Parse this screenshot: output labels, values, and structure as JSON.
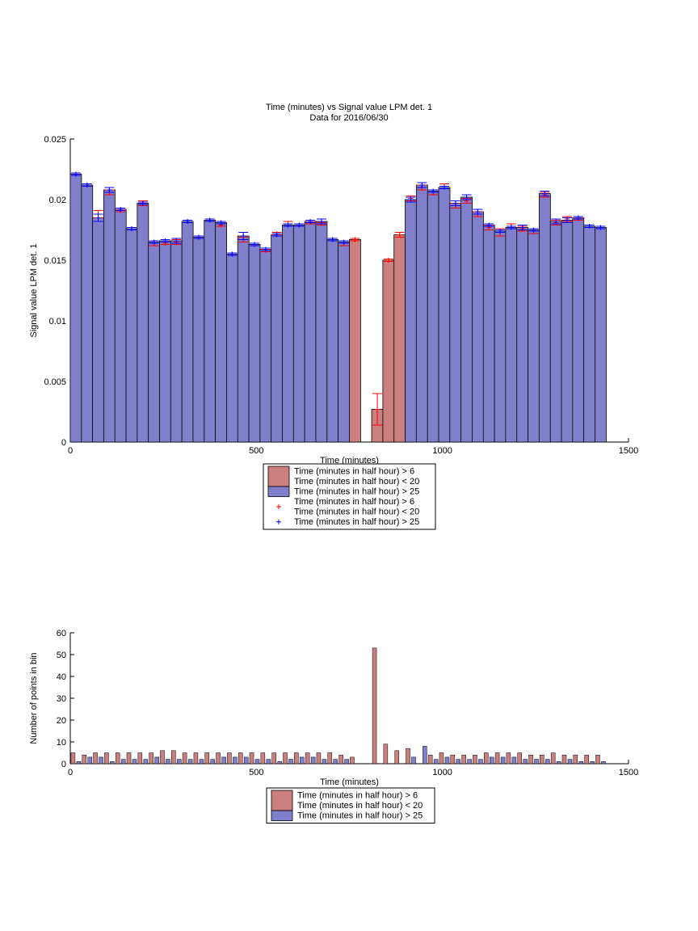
{
  "chart_data": [
    {
      "type": "bar",
      "title": "Time (minutes) vs Signal value LPM det. 1",
      "subtitle": "Data for 2016/06/30",
      "xlabel": "Time (minutes)",
      "ylabel": "Signal value LPM det. 1",
      "xlim": [
        0,
        1500
      ],
      "ylim": [
        0,
        0.025
      ],
      "xticks": [
        0,
        500,
        1000,
        1500
      ],
      "yticks": [
        0,
        0.005,
        0.01,
        0.015,
        0.02,
        0.025
      ],
      "xtick_labels": [
        "0",
        "500",
        "1000",
        "1500"
      ],
      "ytick_labels": [
        "0",
        "0.005",
        "0.01",
        "0.015",
        "0.02",
        "0.025"
      ],
      "grid": false,
      "legend": {
        "placement": "below-axes",
        "entries": [
          {
            "kind": "patch",
            "color": "#cc7f7f",
            "lines": [
              "Time (minutes in half hour) > 6",
              "Time (minutes in half hour) < 20"
            ]
          },
          {
            "kind": "patch",
            "color": "#7f7fcc",
            "lines": [
              "Time (minutes in half hour) > 25"
            ]
          },
          {
            "kind": "marker",
            "color": "#ff0000",
            "lines": [
              "Time (minutes in half hour) > 6",
              "Time (minutes in half hour) < 20"
            ]
          },
          {
            "kind": "marker",
            "color": "#0000ff",
            "lines": [
              "Time (minutes in half hour) > 25"
            ]
          }
        ]
      },
      "series": [
        {
          "color": "#7f7fcc",
          "marker_color": "#0000ff",
          "x": [
            15,
            45,
            75,
            105,
            135,
            165,
            195,
            225,
            255,
            285,
            315,
            345,
            375,
            405,
            435,
            465,
            495,
            525,
            555,
            585,
            615,
            645,
            675,
            705,
            735,
            915,
            945,
            975,
            1005,
            1035,
            1065,
            1095,
            1125,
            1155,
            1185,
            1215,
            1245,
            1275,
            1305,
            1335,
            1365,
            1395,
            1425
          ],
          "values": [
            0.0221,
            0.0212,
            0.0185,
            0.0208,
            0.0192,
            0.0176,
            0.0197,
            0.0165,
            0.0166,
            0.0166,
            0.0182,
            0.0169,
            0.0183,
            0.0181,
            0.0155,
            0.017,
            0.0163,
            0.0159,
            0.0171,
            0.0179,
            0.0179,
            0.0182,
            0.0182,
            0.0167,
            0.0165,
            0.02,
            0.0212,
            0.0207,
            0.021,
            0.0197,
            0.0202,
            0.019,
            0.0179,
            0.0174,
            0.0177,
            0.0177,
            0.0175,
            0.0205,
            0.0182,
            0.0183,
            0.0185,
            0.0178,
            0.0177
          ],
          "errors": [
            0.0001,
            0.0001,
            0.0003,
            0.0002,
            0.0001,
            0.0001,
            0.0001,
            0.0001,
            0.0001,
            0.0002,
            0.0001,
            0.0001,
            0.0001,
            0.0001,
            0.0001,
            0.0003,
            0.0001,
            0.0001,
            0.0001,
            0.0001,
            0.0001,
            0.0001,
            0.0002,
            0.0001,
            0.0001,
            0.0002,
            0.0002,
            0.0001,
            0.0001,
            0.0002,
            0.0002,
            0.0002,
            0.0001,
            0.0001,
            0.0001,
            0.0002,
            0.0001,
            0.0002,
            0.0002,
            0.0002,
            0.0001,
            0.0001,
            0.0001
          ]
        },
        {
          "color": "#cc7f7f",
          "marker_color": "#ff0000",
          "x": [
            15,
            45,
            75,
            105,
            135,
            165,
            195,
            225,
            255,
            285,
            315,
            345,
            375,
            405,
            435,
            465,
            495,
            525,
            555,
            585,
            615,
            645,
            675,
            705,
            735,
            765,
            825,
            855,
            885,
            915,
            945,
            975,
            1005,
            1035,
            1065,
            1095,
            1125,
            1155,
            1185,
            1215,
            1245,
            1275,
            1305,
            1335,
            1365,
            1395,
            1425
          ],
          "values": [
            0.0221,
            0.0212,
            0.0188,
            0.0206,
            0.0191,
            0.0176,
            0.0197,
            0.0164,
            0.0164,
            0.0165,
            0.0182,
            0.0169,
            0.0183,
            0.0179,
            0.0155,
            0.0167,
            0.0163,
            0.0158,
            0.0172,
            0.018,
            0.0179,
            0.0181,
            0.018,
            0.0167,
            0.0164,
            0.0167,
            0.0027,
            0.015,
            0.0171,
            0.0201,
            0.021,
            0.0206,
            0.0211,
            0.0195,
            0.0199,
            0.0188,
            0.0177,
            0.0173,
            0.0178,
            0.0176,
            0.0174,
            0.0204,
            0.0181,
            0.0184,
            0.0184,
            0.0178,
            0.0177
          ],
          "errors": [
            0.0001,
            0.0001,
            0.0003,
            0.0002,
            0.0001,
            0.0001,
            0.0002,
            0.0002,
            0.0001,
            0.0002,
            0.0001,
            0.0001,
            0.0001,
            0.0001,
            0.0001,
            0.0002,
            0.0001,
            0.0001,
            0.0001,
            0.0002,
            0.0001,
            0.0001,
            0.0001,
            0.0001,
            0.0002,
            0.0001,
            0.0013,
            0.0001,
            0.0002,
            0.0002,
            0.0002,
            0.0002,
            0.0002,
            0.0002,
            0.0002,
            0.0002,
            0.0002,
            0.0003,
            0.0002,
            0.0002,
            0.0002,
            0.0002,
            0.0002,
            0.0002,
            0.0001,
            0.0001,
            0.0001
          ]
        }
      ]
    },
    {
      "type": "bar",
      "xlabel": "Time (minutes)",
      "ylabel": "Number of points in bin",
      "xlim": [
        0,
        1500
      ],
      "ylim": [
        0,
        60
      ],
      "xticks": [
        0,
        500,
        1000,
        1500
      ],
      "yticks": [
        0,
        10,
        20,
        30,
        40,
        50,
        60
      ],
      "xtick_labels": [
        "0",
        "500",
        "1000",
        "1500"
      ],
      "ytick_labels": [
        "0",
        "10",
        "20",
        "30",
        "40",
        "50",
        "60"
      ],
      "grid": false,
      "legend": {
        "placement": "below-axes",
        "entries": [
          {
            "kind": "patch",
            "color": "#cc7f7f",
            "lines": [
              "Time (minutes in half hour) > 6",
              "Time (minutes in half hour) < 20"
            ]
          },
          {
            "kind": "patch",
            "color": "#7f7fcc",
            "lines": [
              "Time (minutes in half hour) > 25"
            ]
          }
        ]
      },
      "series": [
        {
          "color": "#cc7f7f",
          "x": [
            15,
            45,
            75,
            105,
            135,
            165,
            195,
            225,
            255,
            285,
            315,
            345,
            375,
            405,
            435,
            465,
            495,
            525,
            555,
            585,
            615,
            645,
            675,
            705,
            735,
            765,
            825,
            855,
            885,
            915,
            945,
            975,
            1005,
            1035,
            1065,
            1095,
            1125,
            1155,
            1185,
            1215,
            1245,
            1275,
            1305,
            1335,
            1365,
            1395,
            1425
          ],
          "values": [
            5,
            4,
            5,
            5,
            5,
            5,
            5,
            5,
            6,
            6,
            5,
            5,
            5,
            5,
            5,
            5,
            5,
            5,
            5,
            5,
            5,
            5,
            5,
            5,
            4,
            3,
            53,
            9,
            6,
            7,
            0,
            4,
            5,
            4,
            4,
            4,
            5,
            5,
            5,
            5,
            4,
            4,
            5,
            4,
            4,
            4,
            4
          ]
        },
        {
          "color": "#7f7fcc",
          "x": [
            15,
            45,
            75,
            105,
            135,
            165,
            195,
            225,
            255,
            285,
            315,
            345,
            375,
            405,
            435,
            465,
            495,
            525,
            555,
            585,
            615,
            645,
            675,
            705,
            735,
            915,
            945,
            975,
            1005,
            1035,
            1065,
            1095,
            1125,
            1155,
            1185,
            1215,
            1245,
            1275,
            1305,
            1335,
            1365,
            1395,
            1425
          ],
          "values": [
            1,
            3,
            3,
            1,
            2,
            2,
            2,
            3,
            2,
            2,
            2,
            2,
            2,
            3,
            3,
            3,
            2,
            2,
            1,
            2,
            3,
            3,
            2,
            2,
            2,
            3,
            8,
            2,
            3,
            2,
            2,
            2,
            3,
            3,
            3,
            2,
            2,
            2,
            1,
            2,
            1,
            1,
            1
          ]
        }
      ]
    }
  ]
}
